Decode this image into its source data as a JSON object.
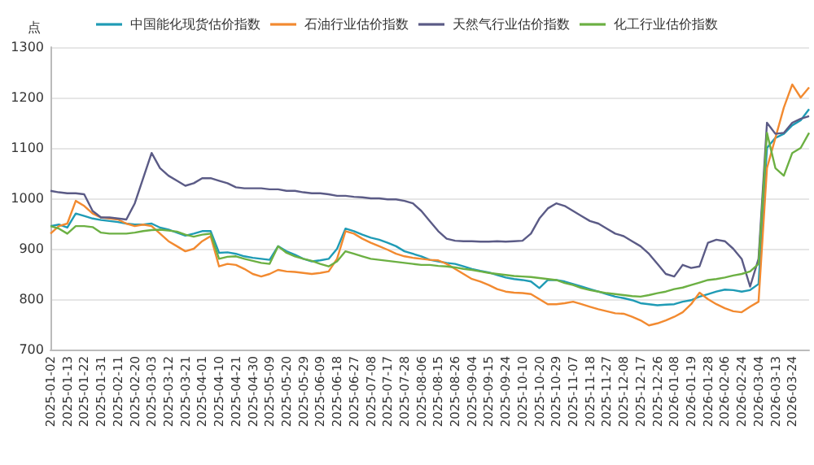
{
  "chart_data": {
    "type": "line",
    "ylabel": "点",
    "categories": [
      "2025-01-02",
      null,
      "2025-01-13",
      null,
      "2025-01-22",
      null,
      "2025-01-31",
      null,
      "2025-02-11",
      null,
      "2025-02-20",
      null,
      "2025-03-03",
      null,
      "2025-03-12",
      null,
      "2025-03-21",
      null,
      "2025-04-01",
      null,
      "2025-04-10",
      null,
      "2025-04-21",
      null,
      "2025-04-30",
      null,
      "2025-05-09",
      null,
      "2025-05-20",
      null,
      "2025-05-29",
      null,
      "2025-06-09",
      null,
      "2025-06-18",
      null,
      "2025-06-27",
      null,
      "2025-07-08",
      null,
      "2025-07-17",
      null,
      "2025-07-28",
      null,
      "2025-08-06",
      null,
      "2025-08-15",
      null,
      "2025-08-26",
      null,
      "2025-09-04",
      null,
      "2025-09-15",
      null,
      "2025-09-24",
      null,
      "2025-10-10",
      null,
      "2025-10-20",
      null,
      "2025-10-29",
      null,
      "2025-11-07",
      null,
      "2025-11-18",
      null,
      "2025-11-27",
      null,
      "2025-12-08",
      null,
      "2025-12-17",
      null,
      "2025-12-26",
      null,
      "2026-01-08",
      null,
      "2026-01-19",
      null,
      "2026-01-28",
      null,
      "2026-02-06",
      null,
      "2026-02-24",
      null,
      "2026-03-04",
      null,
      "2026-03-13",
      null,
      "2026-03-24",
      null,
      null
    ],
    "series": [
      {
        "name": "中国能化现货估价指数",
        "color": "#1f9bb5",
        "values": [
          945,
          948,
          942,
          970,
          965,
          960,
          957,
          955,
          953,
          950,
          948,
          948,
          950,
          942,
          938,
          932,
          926,
          930,
          935,
          935,
          892,
          893,
          890,
          885,
          882,
          880,
          878,
          905,
          895,
          888,
          880,
          875,
          877,
          880,
          900,
          940,
          935,
          928,
          922,
          918,
          912,
          905,
          895,
          890,
          885,
          878,
          875,
          872,
          870,
          865,
          860,
          856,
          853,
          848,
          843,
          840,
          838,
          835,
          822,
          838,
          838,
          835,
          830,
          825,
          820,
          815,
          810,
          805,
          802,
          798,
          792,
          790,
          788,
          789,
          790,
          795,
          798,
          805,
          810,
          815,
          819,
          818,
          815,
          818,
          830,
          1100,
          1120,
          1128,
          1145,
          1155,
          1177
        ]
      },
      {
        "name": "石油行业估价指数",
        "color": "#f28a30",
        "values": [
          930,
          945,
          950,
          995,
          985,
          970,
          962,
          960,
          958,
          950,
          945,
          948,
          945,
          930,
          915,
          905,
          895,
          900,
          915,
          925,
          865,
          870,
          868,
          860,
          850,
          845,
          850,
          858,
          855,
          854,
          852,
          850,
          852,
          855,
          880,
          935,
          930,
          920,
          912,
          905,
          898,
          890,
          885,
          882,
          880,
          878,
          877,
          870,
          860,
          850,
          840,
          835,
          828,
          820,
          815,
          813,
          812,
          810,
          800,
          790,
          790,
          792,
          795,
          790,
          785,
          780,
          776,
          772,
          771,
          765,
          758,
          748,
          752,
          758,
          765,
          774,
          790,
          813,
          800,
          790,
          782,
          776,
          774,
          785,
          795,
          1060,
          1120,
          1180,
          1226,
          1200,
          1220
        ]
      },
      {
        "name": "天然气行业估价指数",
        "color": "#5b5b86",
        "values": [
          1015,
          1012,
          1010,
          1010,
          1008,
          975,
          962,
          962,
          960,
          958,
          990,
          1040,
          1090,
          1060,
          1045,
          1035,
          1025,
          1030,
          1040,
          1040,
          1035,
          1030,
          1022,
          1020,
          1020,
          1020,
          1018,
          1018,
          1015,
          1015,
          1012,
          1010,
          1010,
          1008,
          1005,
          1005,
          1003,
          1002,
          1000,
          1000,
          998,
          998,
          995,
          990,
          975,
          955,
          935,
          920,
          916,
          915,
          915,
          914,
          914,
          915,
          914,
          915,
          916,
          930,
          960,
          980,
          990,
          985,
          975,
          965,
          955,
          950,
          940,
          930,
          925,
          915,
          905,
          890,
          870,
          850,
          845,
          868,
          862,
          865,
          912,
          918,
          915,
          900,
          880,
          825,
          880,
          1150,
          1128,
          1130,
          1150,
          1158,
          1163
        ]
      },
      {
        "name": "化工行业估价指数",
        "color": "#6cb043",
        "values": [
          945,
          940,
          930,
          945,
          945,
          943,
          932,
          930,
          930,
          930,
          932,
          935,
          937,
          938,
          936,
          934,
          928,
          924,
          928,
          930,
          880,
          884,
          885,
          880,
          876,
          872,
          870,
          905,
          892,
          885,
          880,
          876,
          870,
          865,
          875,
          895,
          890,
          885,
          880,
          878,
          876,
          874,
          872,
          870,
          868,
          868,
          866,
          865,
          863,
          860,
          858,
          855,
          852,
          850,
          848,
          846,
          845,
          844,
          842,
          840,
          838,
          832,
          828,
          822,
          818,
          815,
          812,
          810,
          808,
          806,
          805,
          808,
          812,
          815,
          820,
          823,
          828,
          833,
          838,
          840,
          843,
          847,
          850,
          855,
          870,
          1130,
          1060,
          1045,
          1090,
          1100,
          1130
        ]
      }
    ],
    "ylim": [
      700,
      1300
    ],
    "yticks": [
      700,
      800,
      900,
      1000,
      1100,
      1200,
      1300
    ],
    "grid": "y",
    "legend": "top",
    "marker": "none",
    "line_style": "solid"
  }
}
